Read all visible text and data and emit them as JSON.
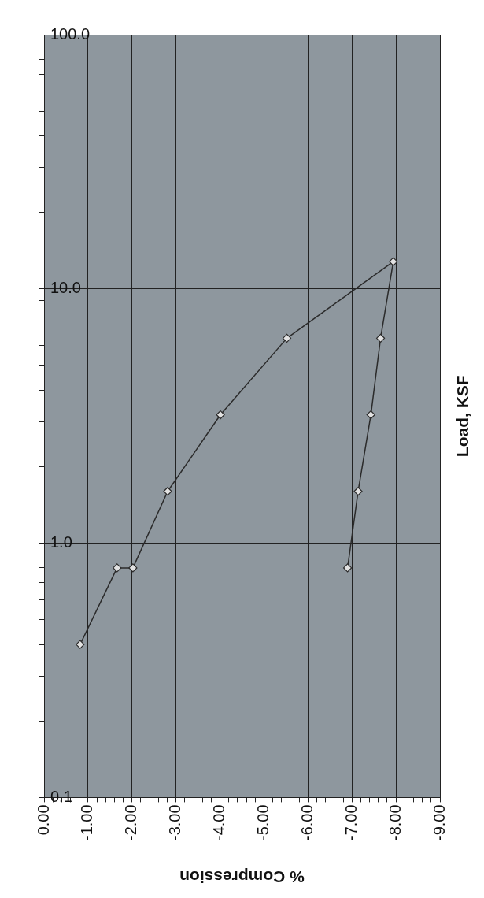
{
  "chart_data": {
    "type": "line",
    "xlabel": "% Compression",
    "ylabel": "Load, KSF",
    "log": "y",
    "grid": true,
    "marker": "diamond",
    "line_style": "solid",
    "ylim": [
      0.1,
      100
    ],
    "yticks": [
      0.1,
      {
        "value": 0.2,
        "label": null
      },
      {
        "value": 0.3,
        "label": null
      },
      {
        "value": 0.4,
        "label": null
      },
      {
        "value": 0.5,
        "label": null
      },
      {
        "value": 0.6,
        "label": null
      },
      {
        "value": 0.7,
        "label": null
      },
      {
        "value": 0.8,
        "label": null
      },
      {
        "value": 0.9,
        "label": null
      },
      {
        "value": 1,
        "label": "1.0"
      },
      {
        "value": 2,
        "label": null
      },
      {
        "value": 3,
        "label": null
      },
      {
        "value": 4,
        "label": null
      },
      {
        "value": 5,
        "label": null
      },
      {
        "value": 6,
        "label": null
      },
      {
        "value": 7,
        "label": null
      },
      {
        "value": 8,
        "label": null
      },
      {
        "value": 9,
        "label": null
      },
      {
        "value": 10,
        "label": "10.0"
      },
      {
        "value": 20,
        "label": null
      },
      {
        "value": 30,
        "label": null
      },
      {
        "value": 40,
        "label": null
      },
      {
        "value": 50,
        "label": null
      },
      {
        "value": 60,
        "label": null
      },
      {
        "value": 70,
        "label": null
      },
      {
        "value": 80,
        "label": null
      },
      {
        "value": 90,
        "label": null
      },
      {
        "value": 100,
        "label": "100.0"
      }
    ],
    "xlim": [
      0,
      -9
    ],
    "xticks": [
      {
        "value": 0,
        "label": "0.00"
      },
      {
        "value": -0.2,
        "label": null
      },
      {
        "value": -0.4,
        "label": null
      },
      {
        "value": -0.6,
        "label": null
      },
      {
        "value": -0.8,
        "label": null
      },
      {
        "value": -1,
        "label": "-1.00"
      },
      {
        "value": -1.2,
        "label": null
      },
      {
        "value": -1.4,
        "label": null
      },
      {
        "value": -1.6,
        "label": null
      },
      {
        "value": -1.8,
        "label": null
      },
      {
        "value": -2,
        "label": "-2.00"
      },
      {
        "value": -2.2,
        "label": null
      },
      {
        "value": -2.4,
        "label": null
      },
      {
        "value": -2.6,
        "label": null
      },
      {
        "value": -2.8,
        "label": null
      },
      {
        "value": -3,
        "label": "-3.00"
      },
      {
        "value": -3.2,
        "label": null
      },
      {
        "value": -3.4,
        "label": null
      },
      {
        "value": -3.6,
        "label": null
      },
      {
        "value": -3.8,
        "label": null
      },
      {
        "value": -4,
        "label": "-4.00"
      },
      {
        "value": -4.2,
        "label": null
      },
      {
        "value": -4.4,
        "label": null
      },
      {
        "value": -4.6,
        "label": null
      },
      {
        "value": -4.8,
        "label": null
      },
      {
        "value": -5,
        "label": "-5.00"
      },
      {
        "value": -5.2,
        "label": null
      },
      {
        "value": -5.4,
        "label": null
      },
      {
        "value": -5.6,
        "label": null
      },
      {
        "value": -5.8,
        "label": null
      },
      {
        "value": -6,
        "label": "-6.00"
      },
      {
        "value": -6.2,
        "label": null
      },
      {
        "value": -6.4,
        "label": null
      },
      {
        "value": -6.6,
        "label": null
      },
      {
        "value": -6.8,
        "label": null
      },
      {
        "value": -7,
        "label": "-7.00"
      },
      {
        "value": -7.2,
        "label": null
      },
      {
        "value": -7.4,
        "label": null
      },
      {
        "value": -7.6,
        "label": null
      },
      {
        "value": -7.8,
        "label": null
      },
      {
        "value": -8,
        "label": "-8.00"
      },
      {
        "value": -8.2,
        "label": null
      },
      {
        "value": -8.4,
        "label": null
      },
      {
        "value": -8.6,
        "label": null
      },
      {
        "value": -8.8,
        "label": null
      },
      {
        "value": -9,
        "label": "-9.00"
      }
    ],
    "series": [
      {
        "color": "#2b2b2b",
        "x": [
          -0.82,
          -1.66,
          -2.02,
          -2.81,
          -4.01,
          -5.52,
          -7.94,
          -7.65,
          -7.43,
          -7.14,
          -6.9
        ],
        "values": [
          0.4,
          0.8,
          0.8,
          1.6,
          3.2,
          6.4,
          12.8,
          6.4,
          3.2,
          1.6,
          0.8
        ]
      }
    ]
  }
}
